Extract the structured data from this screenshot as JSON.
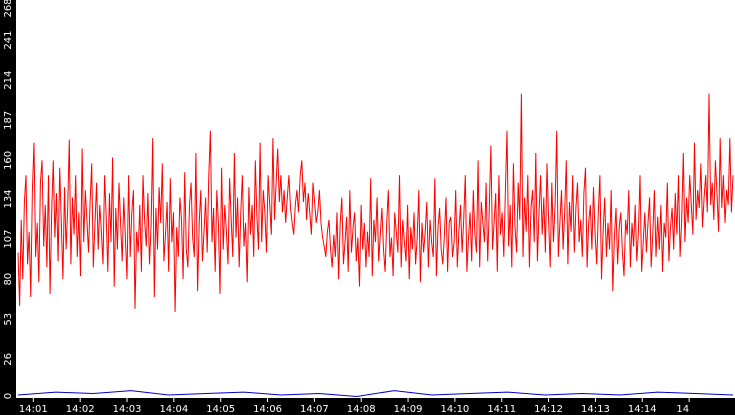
{
  "chart_data": {
    "type": "line",
    "title": "",
    "xlabel": "",
    "ylabel": "",
    "ylim": [
      0,
      268
    ],
    "y_ticks": [
      "0",
      "26",
      "53",
      "80",
      "107",
      "134",
      "160",
      "187",
      "214",
      "241",
      "268"
    ],
    "x_ticks": [
      "14:01",
      "14:02",
      "14:03",
      "14:04",
      "14:05",
      "14:06",
      "14:07",
      "14:08",
      "14:09",
      "14:10",
      "14:11",
      "14:12",
      "14:13",
      "14:14",
      "14"
    ],
    "x_range_minutes": [
      14.63,
      29.98
    ],
    "grid": false,
    "legend": "none",
    "colors": {
      "background": "#ffffff",
      "frame": "#000000",
      "axis_text": "#ffffff",
      "series_primary": "#ff0000",
      "series_secondary": "#0000cc"
    },
    "series": [
      {
        "color": "#ff0000",
        "values": [
          98,
          62,
          120,
          80,
          132,
          150,
          90,
          112,
          68,
          140,
          172,
          95,
          118,
          78,
          145,
          160,
          102,
          130,
          88,
          150,
          70,
          125,
          160,
          108,
          138,
          92,
          155,
          118,
          80,
          142,
          100,
          128,
          174,
          90,
          135,
          110,
          150,
          95,
          125,
          82,
          168,
          105,
          140,
          120,
          98,
          132,
          158,
          88,
          118,
          145,
          100,
          130,
          112,
          90,
          150,
          122,
          85,
          138,
          105,
          162,
          75,
          128,
          100,
          145,
          118,
          92,
          135,
          108,
          80,
          150,
          95,
          125,
          140,
          60,
          112,
          98,
          130,
          85,
          150,
          120,
          102,
          138,
          90,
          116,
          175,
          68,
          128,
          100,
          142,
          118,
          158,
          92,
          110,
          132,
          85,
          148,
          105,
          125,
          58,
          115,
          95,
          135,
          120,
          80,
          152,
          100,
          88,
          130,
          145,
          108,
          95,
          165,
          72,
          118,
          140,
          92,
          112,
          135,
          98,
          150,
          180,
          105,
          128,
          85,
          140,
          118,
          70,
          155,
          100,
          130,
          112,
          90,
          148,
          120,
          95,
          165,
          108,
          135,
          88,
          125,
          150,
          102,
          118,
          78,
          142,
          110,
          130,
          95,
          160,
          122,
          100,
          172,
          105,
          140,
          125,
          98,
          150,
          130,
          110,
          175,
          120,
          145,
          168,
          132,
          150,
          125,
          140,
          118,
          135,
          150,
          128,
          118,
          110,
          130,
          140,
          125,
          150,
          160,
          132,
          145,
          120,
          138,
          125,
          110,
          145,
          132,
          118,
          125,
          140,
          118,
          108,
          102,
          95,
          112,
          120,
          100,
          88,
          110,
          95,
          125,
          80,
          118,
          135,
          90,
          105,
          122,
          85,
          140,
          98,
          115,
          125,
          92,
          108,
          75,
          130,
          100,
          118,
          88,
          112,
          95,
          148,
          82,
          120,
          105,
          135,
          92,
          110,
          128,
          100,
          85,
          118,
          140,
          95,
          108,
          82,
          125,
          112,
          98,
          150,
          88,
          120,
          105,
          92,
          130,
          80,
          115,
          100,
          125,
          90,
          108,
          140,
          78,
          118,
          98,
          112,
          132,
          88,
          120,
          105,
          95,
          148,
          82,
          115,
          128,
          100,
          90,
          110,
          135,
          85,
          118,
          122,
          95,
          105,
          140,
          88,
          112,
          130,
          98,
          120,
          150,
          85,
          108,
          125,
          92,
          140,
          110,
          98,
          160,
          88,
          132,
          118,
          105,
          145,
          92,
          128,
          170,
          100,
          118,
          138,
          85,
          150,
          110,
          125,
          95,
          140,
          180,
          102,
          130,
          88,
          158,
          115,
          98,
          145,
          120,
          205,
          95,
          135,
          112,
          150,
          88,
          128,
          140,
          105,
          165,
          92,
          125,
          150,
          110,
          135,
          98,
          158,
          120,
          88,
          145,
          105,
          130,
          180,
          95,
          118,
          140,
          100,
          125,
          160,
          90,
          132,
          112,
          150,
          98,
          128,
          145,
          105,
          120,
          95,
          138,
          155,
          88,
          118,
          130,
          100,
          142,
          110,
          90,
          125,
          150,
          80,
          112,
          135,
          95,
          118,
          100,
          140,
          72,
          108,
          128,
          90,
          115,
          125,
          98,
          82,
          120,
          110,
          140,
          88,
          118,
          102,
          130,
          92,
          112,
          150,
          85,
          105,
          125,
          98,
          118,
          135,
          88,
          110,
          140,
          95,
          122,
          100,
          130,
          85,
          118,
          108,
          145,
          92,
          115,
          128,
          100,
          138,
          110,
          150,
          95,
          120,
          165,
          105,
          135,
          118,
          150,
          130,
          110,
          172,
          120,
          140,
          128,
          158,
          115,
          135,
          150,
          125,
          205,
          130,
          145,
          120,
          160,
          138,
          112,
          175,
          128,
          150,
          118,
          140,
          130,
          175,
          125,
          150
        ]
      },
      {
        "color": "#0000cc",
        "values": [
          2,
          4,
          3,
          5,
          2,
          3,
          4,
          2,
          3,
          1,
          5,
          2,
          3,
          4,
          2,
          3,
          2,
          4,
          3,
          2
        ]
      }
    ]
  }
}
